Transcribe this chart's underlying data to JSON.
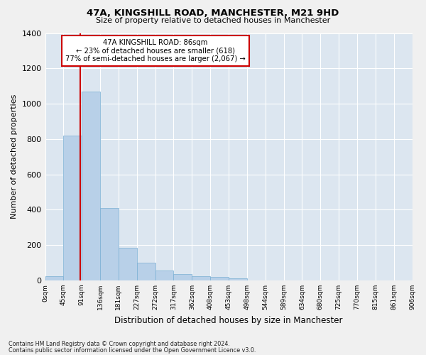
{
  "title_line1": "47A, KINGSHILL ROAD, MANCHESTER, M21 9HD",
  "title_line2": "Size of property relative to detached houses in Manchester",
  "xlabel": "Distribution of detached houses by size in Manchester",
  "ylabel": "Number of detached properties",
  "bar_values": [
    25,
    820,
    1070,
    410,
    185,
    100,
    55,
    35,
    25,
    20,
    12,
    0,
    0,
    0,
    0,
    0,
    0,
    0,
    0,
    0
  ],
  "bar_labels": [
    "0sqm",
    "45sqm",
    "91sqm",
    "136sqm",
    "181sqm",
    "227sqm",
    "272sqm",
    "317sqm",
    "362sqm",
    "408sqm",
    "453sqm",
    "498sqm",
    "544sqm",
    "589sqm",
    "634sqm",
    "680sqm",
    "725sqm",
    "770sqm",
    "815sqm",
    "861sqm",
    "906sqm"
  ],
  "bar_color": "#b8d0e8",
  "bar_edge_color": "#7aafd4",
  "plot_bg_color": "#dce6f0",
  "fig_bg_color": "#f0f0f0",
  "grid_color": "#ffffff",
  "annotation_text": "47A KINGSHILL ROAD: 86sqm\n← 23% of detached houses are smaller (618)\n77% of semi-detached houses are larger (2,067) →",
  "vline_x": 86,
  "vline_color": "#cc0000",
  "annotation_box_edge": "#cc0000",
  "ylim": [
    0,
    1400
  ],
  "yticks": [
    0,
    200,
    400,
    600,
    800,
    1000,
    1200,
    1400
  ],
  "bin_width": 45,
  "n_bars": 20,
  "footnote1": "Contains HM Land Registry data © Crown copyright and database right 2024.",
  "footnote2": "Contains public sector information licensed under the Open Government Licence v3.0."
}
